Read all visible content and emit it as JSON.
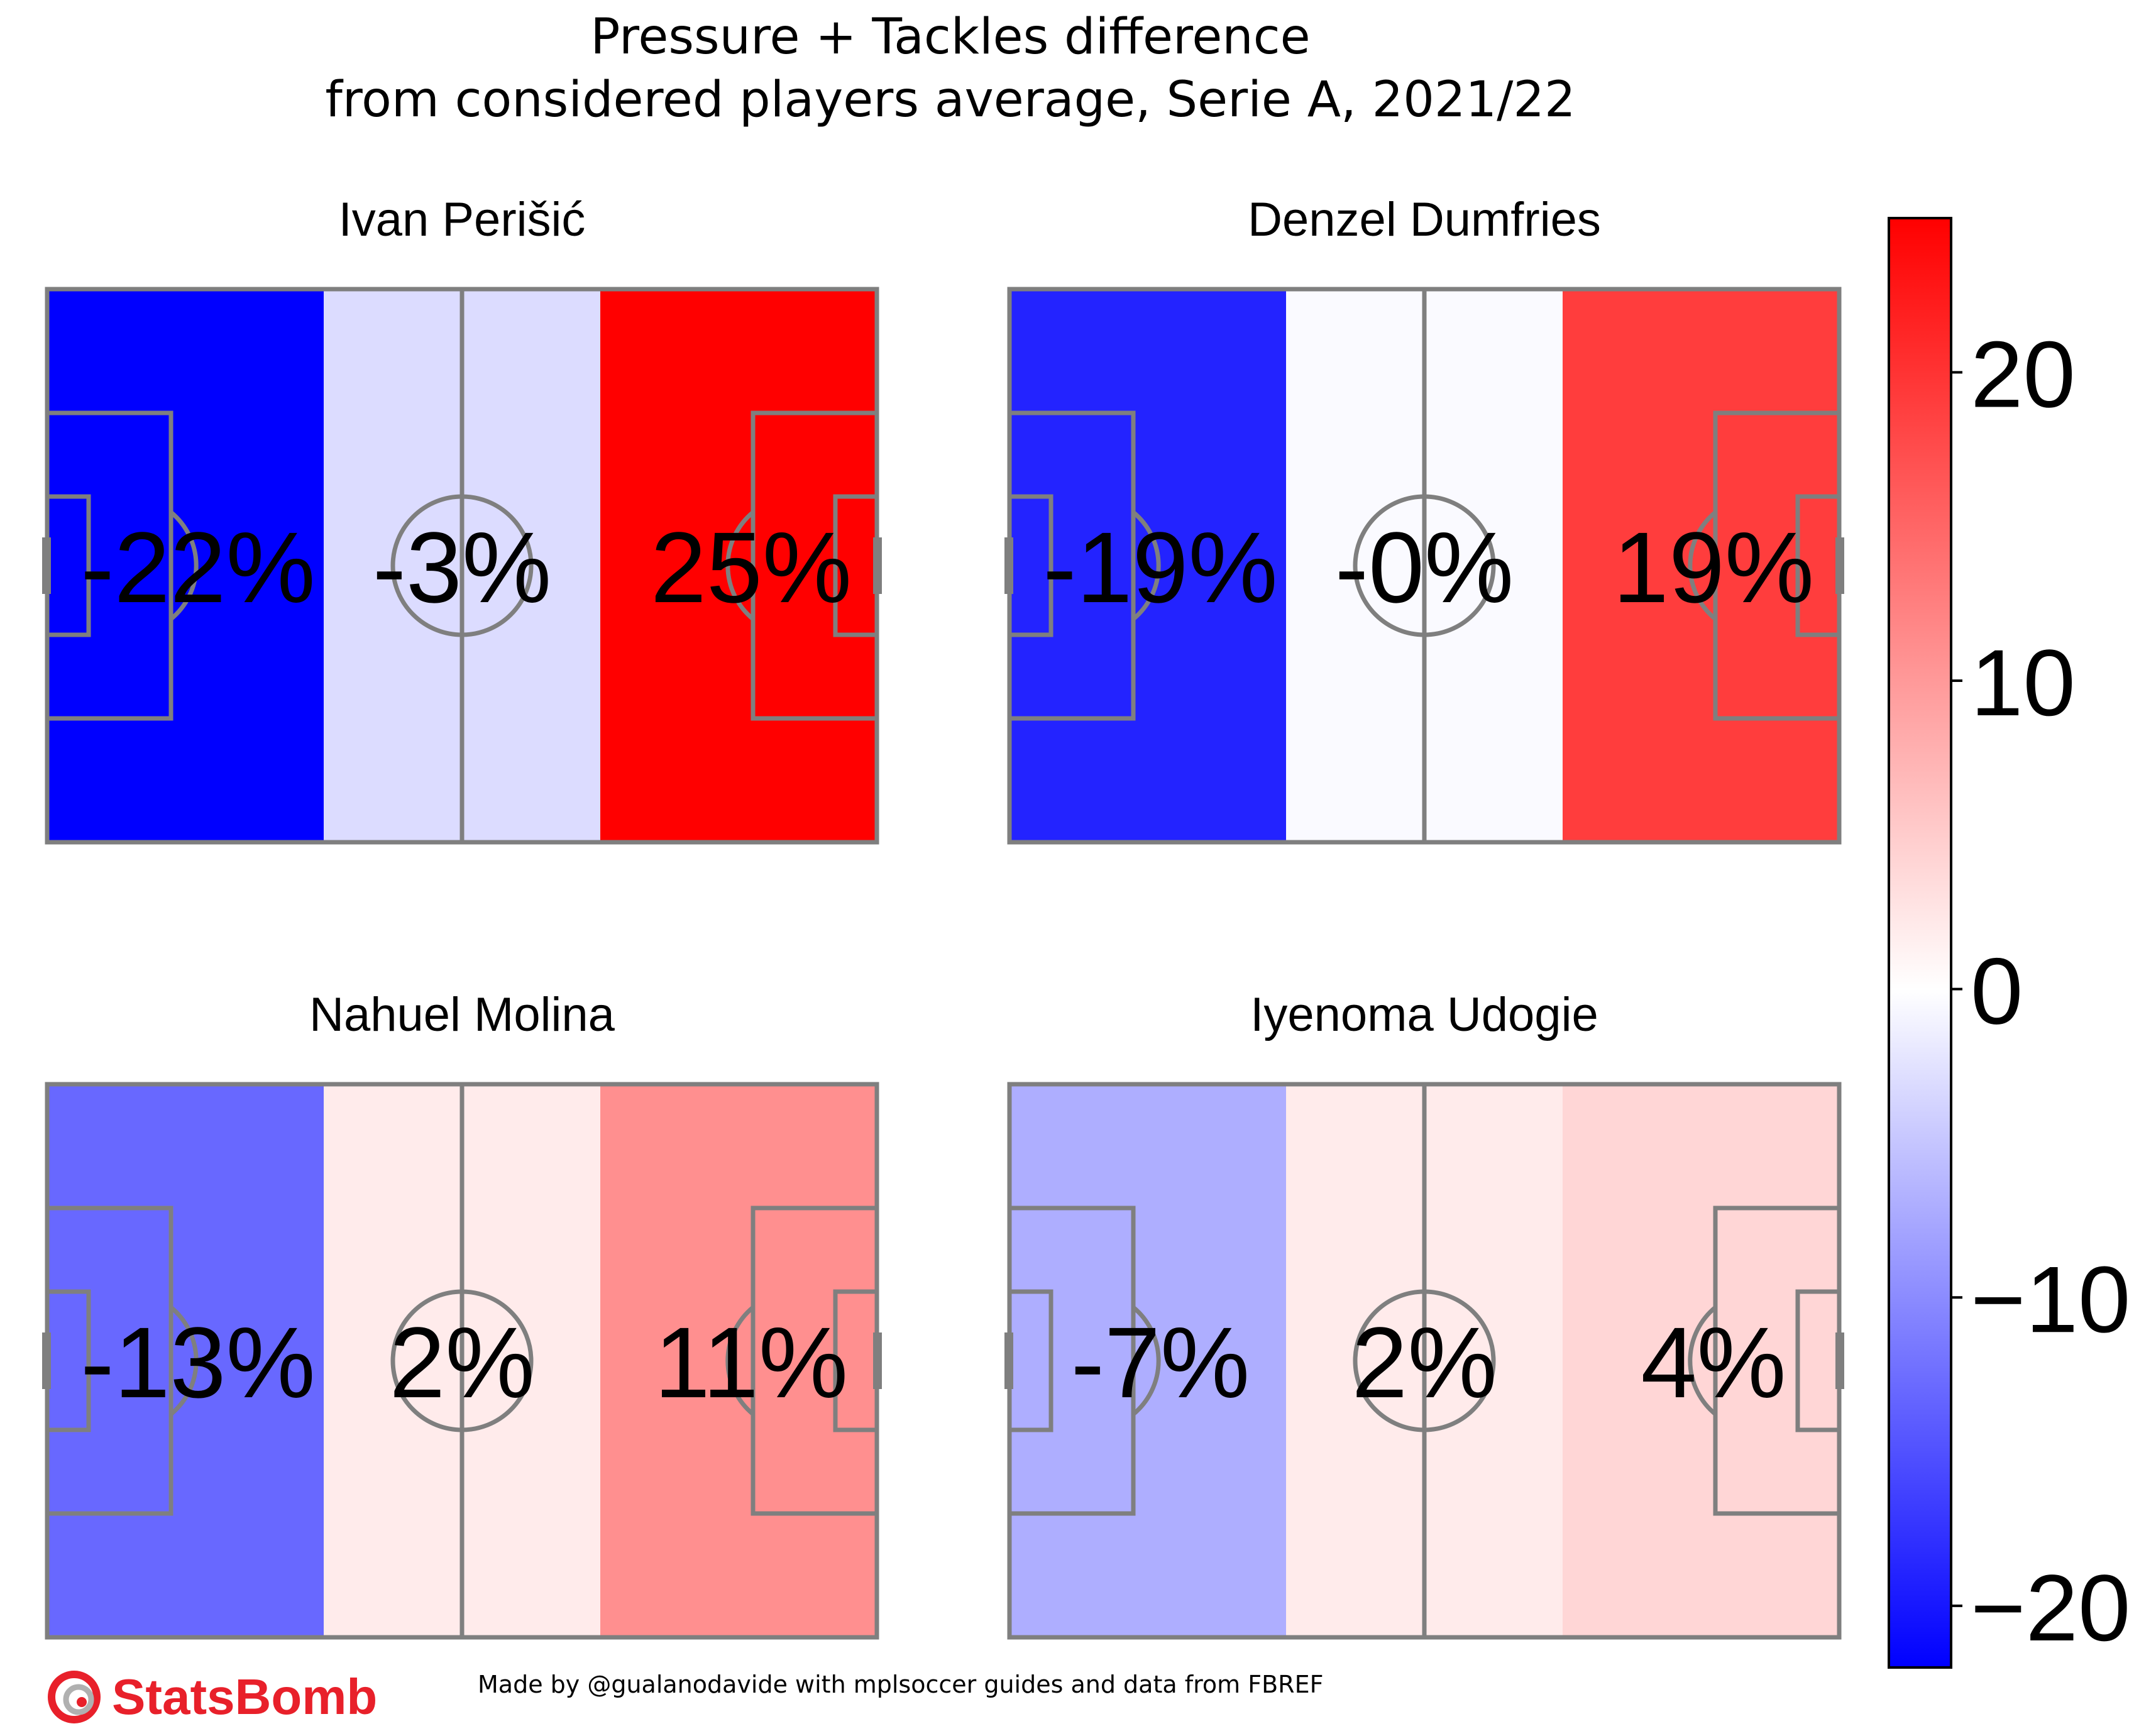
{
  "title_line1": "Pressure + Tackles difference",
  "title_line2": "from considered players average, Serie A, 2021/22",
  "footer_note": "Made by @gualanodavide with mplsoccer guides and data from FBREF",
  "logo_text": "StatsBomb",
  "colors": {
    "logo_red": "#e8202a",
    "pitch_line": "#7f7f7f",
    "cmap_low": "#0000ff",
    "cmap_mid": "#ffffff",
    "cmap_high": "#ff0000"
  },
  "chart_data": {
    "type": "heatmap",
    "zones": [
      "defensive third",
      "middle third",
      "attacking third"
    ],
    "colorbar": {
      "min": -22,
      "max": 25,
      "ticks": [
        20,
        10,
        0,
        -10,
        -20
      ],
      "tick_labels": [
        "20",
        "10",
        "0",
        "−10",
        "−20"
      ]
    },
    "panels": [
      {
        "player": "Ivan Perišić",
        "values": [
          -22,
          -3,
          25
        ],
        "labels": [
          "-22%",
          "-3%",
          "25%"
        ]
      },
      {
        "player": "Denzel Dumfries",
        "values": [
          -19,
          -0.4,
          19
        ],
        "labels": [
          "-19%",
          "-0%",
          "19%"
        ]
      },
      {
        "player": "Nahuel Molina",
        "values": [
          -13,
          2,
          11
        ],
        "labels": [
          "-13%",
          "2%",
          "11%"
        ]
      },
      {
        "player": "Iyenoma Udogie",
        "values": [
          -7,
          2,
          4
        ],
        "labels": [
          "-7%",
          "2%",
          "4%"
        ]
      }
    ]
  }
}
